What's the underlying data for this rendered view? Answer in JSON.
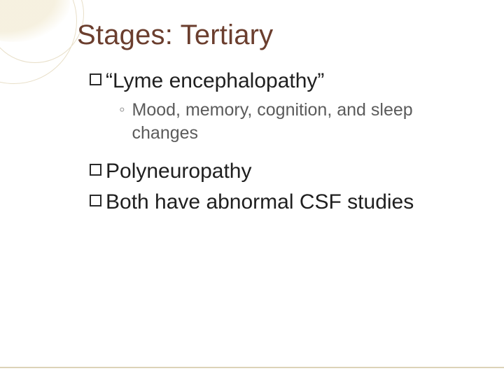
{
  "colors": {
    "title": "#6b3e2e",
    "body": "#1f1f1f",
    "sub": "#5b5b5b",
    "decor_stroke": "#e8dfc8",
    "decor_fill": "#f5efdc",
    "rule": "#dcd3b8",
    "background": "#ffffff"
  },
  "typography": {
    "title_fontsize_pt": 30,
    "body_fontsize_pt": 22,
    "sub_fontsize_pt": 19,
    "font_family": "Arial"
  },
  "title": "Stages: Tertiary",
  "bullets": {
    "b0": {
      "text": "“Lyme encephalopathy”"
    },
    "sub0": {
      "marker": "◦",
      "text": "Mood,  memory,  cognition,  and sleep changes"
    },
    "b1": {
      "text": "Polyneuropathy"
    },
    "b2": {
      "text": "Both have abnormal CSF studies"
    }
  }
}
